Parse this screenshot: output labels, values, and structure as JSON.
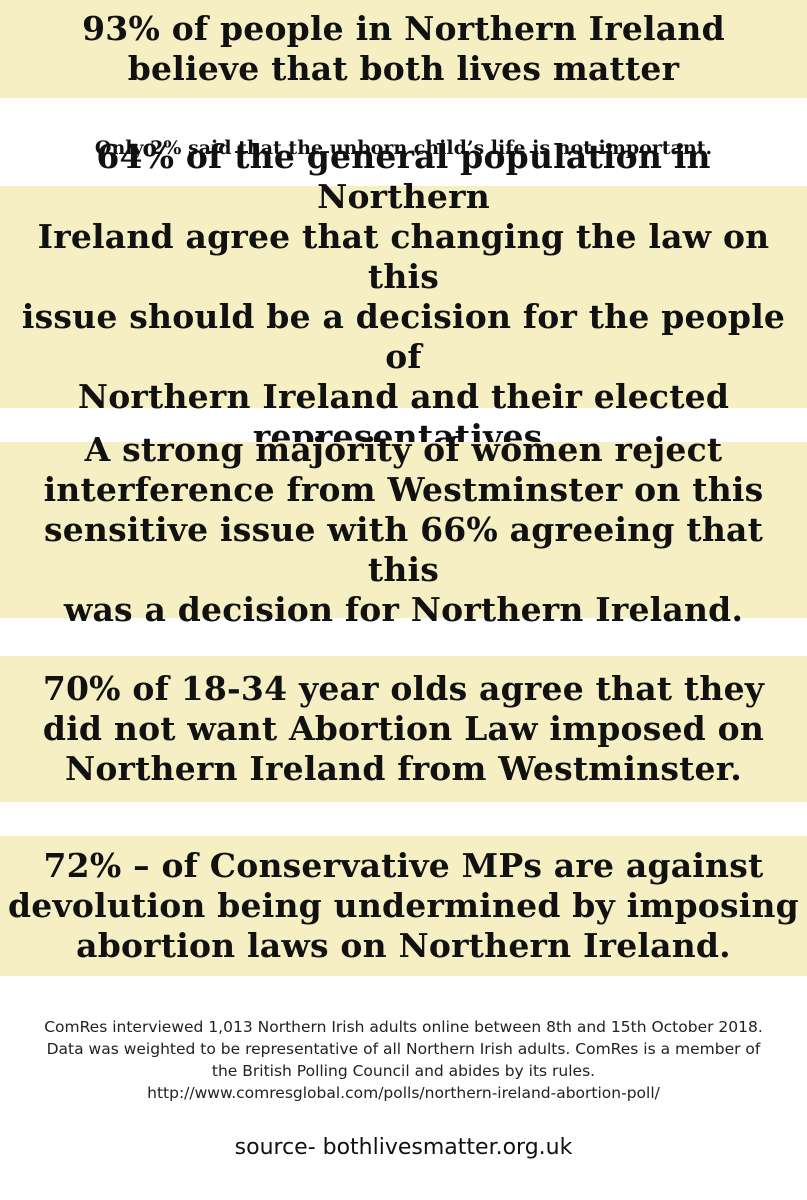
{
  "stats": [
    {
      "text": "93% of people in Northern Ireland\nbelieve that both lives matter"
    },
    {
      "text": "64% of the general population in Northern\nIreland agree that changing the law on this\nissue should be a decision for the people of\nNorthern Ireland and their elected\nrepresentatives."
    },
    {
      "text": "A strong majority of women reject\ninterference from Westminster on this\nsensitive issue with 66% agreeing that this\nwas a decision for Northern Ireland."
    },
    {
      "text": "70% of 18-34 year olds agree that they\ndid not want Abortion Law imposed on\nNorthern Ireland from Westminster."
    },
    {
      "text": "72% – of Conservative MPs are against\ndevolution being undermined by imposing\nabortion laws on Northern Ireland."
    }
  ],
  "subtext": "Only 2% said that the unborn child’s life is not important.",
  "footnote": "ComRes interviewed 1,013 Northern Irish adults online between 8th and 15th October 2018. Data was weighted to be representative of all Northern Irish adults. ComRes is a member of the British Polling Council and abides by its rules. http://www.comresglobal.com/polls/northern-ireland-abortion-poll/",
  "source": "source- bothlivesmatter.org.uk",
  "colors": {
    "band_background": "#f6efc4",
    "page_background": "#ffffff",
    "text": "#111111"
  }
}
